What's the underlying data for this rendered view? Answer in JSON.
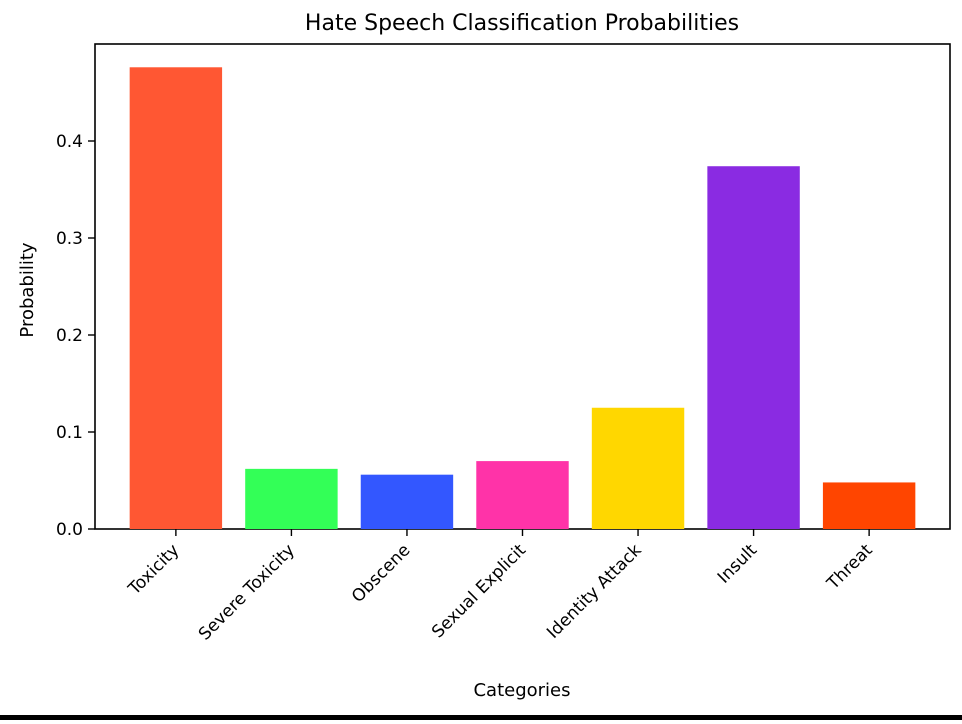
{
  "chart_data": {
    "type": "bar",
    "title": "Hate Speech Classification Probabilities",
    "xlabel": "Categories",
    "ylabel": "Probability",
    "categories": [
      "Toxicity",
      "Severe Toxicity",
      "Obscene",
      "Sexual Explicit",
      "Identity Attack",
      "Insult",
      "Threat"
    ],
    "values": [
      0.476,
      0.062,
      0.056,
      0.07,
      0.125,
      0.374,
      0.048
    ],
    "colors": [
      "#FF5733",
      "#33FF57",
      "#3357FF",
      "#FF33A8",
      "#FFD700",
      "#8A2BE2",
      "#FF4500"
    ],
    "ylim": [
      0,
      0.5
    ],
    "yticks": [
      0.0,
      0.1,
      0.2,
      0.3,
      0.4
    ],
    "ytick_labels": [
      "0.0",
      "0.1",
      "0.2",
      "0.3",
      "0.4"
    ],
    "grid": false,
    "legend": "none"
  }
}
